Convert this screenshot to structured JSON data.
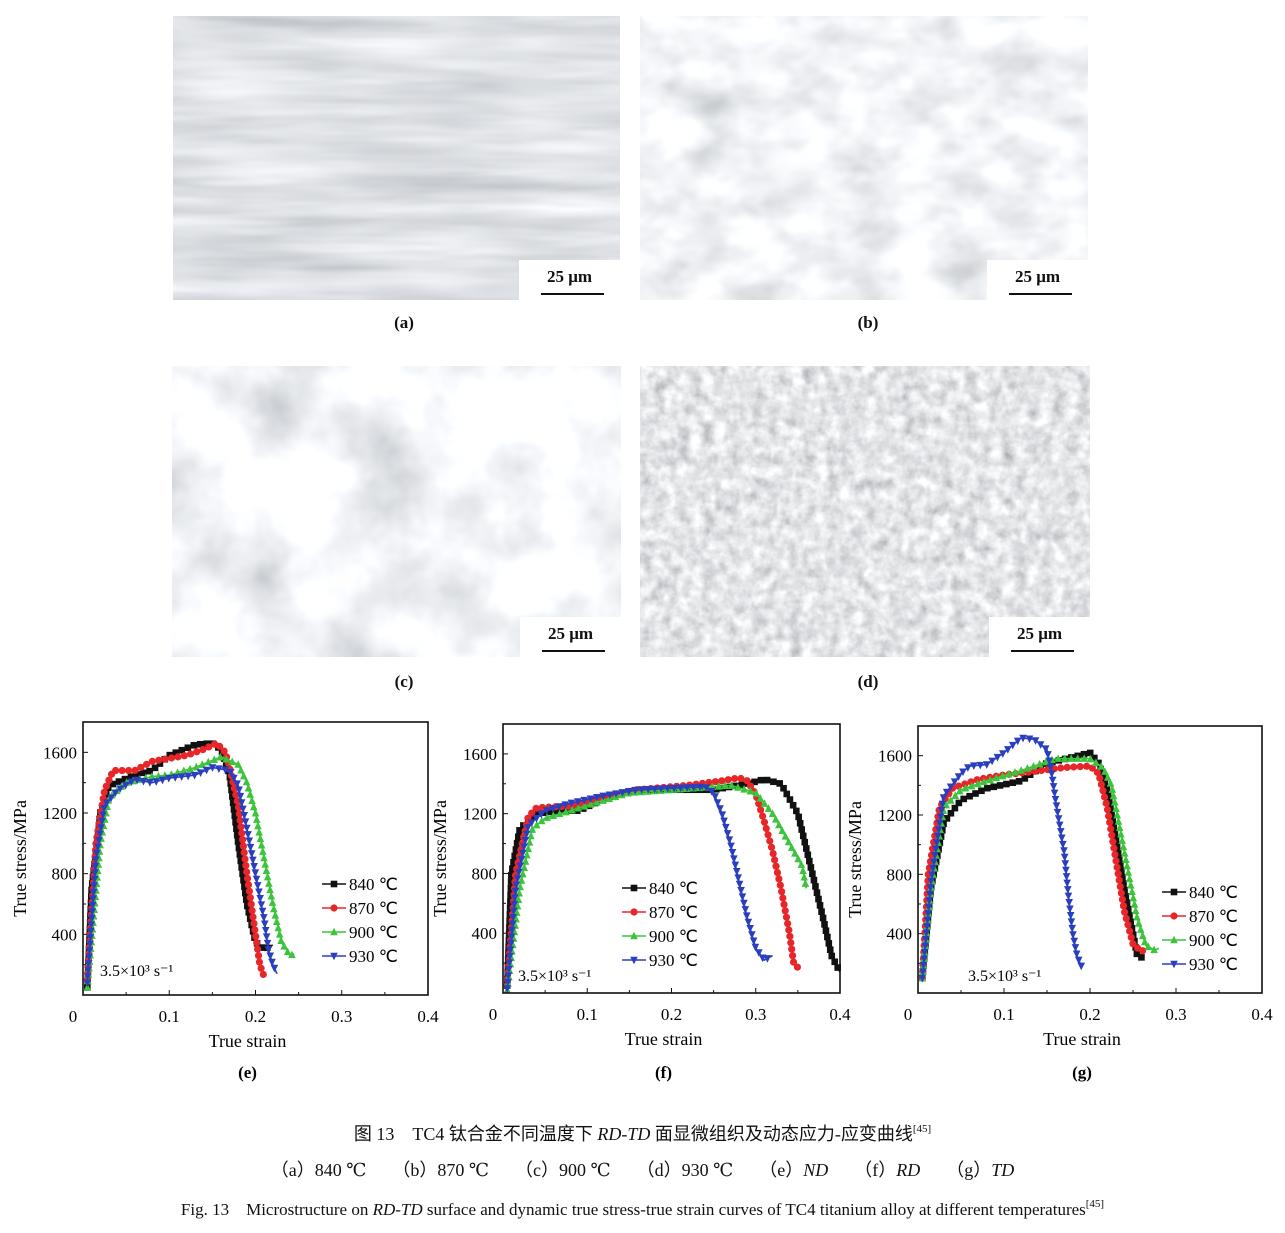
{
  "micrographs": [
    {
      "label": "(a)",
      "scale_bar": "25 μm"
    },
    {
      "label": "(b)",
      "scale_bar": "25 μm"
    },
    {
      "label": "(c)",
      "scale_bar": "25 μm"
    },
    {
      "label": "(d)",
      "scale_bar": "25 μm"
    }
  ],
  "colors": {
    "840": "#111111",
    "870": "#e8262a",
    "900": "#3cc43c",
    "930": "#2a3fc0"
  },
  "chart_data": [
    {
      "panel": "(e)",
      "type": "line",
      "xlabel": "True strain",
      "ylabel": "True stress/MPa",
      "xlim": [
        0,
        0.4
      ],
      "ylim": [
        0,
        1800
      ],
      "xticks": [
        "0",
        "0.1",
        "0.2",
        "0.3",
        "0.4"
      ],
      "yticks": [
        "400",
        "800",
        "1200",
        "1600"
      ],
      "annotation": "3.5×10³ s⁻¹",
      "legend": "right",
      "series": [
        {
          "name": "840 ℃",
          "marker": "square",
          "points": [
            [
              0.005,
              50
            ],
            [
              0.01,
              700
            ],
            [
              0.02,
              1200
            ],
            [
              0.03,
              1380
            ],
            [
              0.06,
              1450
            ],
            [
              0.08,
              1480
            ],
            [
              0.1,
              1580
            ],
            [
              0.13,
              1650
            ],
            [
              0.15,
              1660
            ],
            [
              0.16,
              1620
            ],
            [
              0.17,
              1450
            ],
            [
              0.18,
              1000
            ],
            [
              0.19,
              600
            ],
            [
              0.2,
              350
            ],
            [
              0.21,
              300
            ],
            [
              0.22,
              330
            ]
          ]
        },
        {
          "name": "870 ℃",
          "marker": "circle",
          "points": [
            [
              0.005,
              100
            ],
            [
              0.015,
              1000
            ],
            [
              0.025,
              1350
            ],
            [
              0.035,
              1480
            ],
            [
              0.06,
              1480
            ],
            [
              0.08,
              1540
            ],
            [
              0.1,
              1560
            ],
            [
              0.12,
              1580
            ],
            [
              0.14,
              1620
            ],
            [
              0.155,
              1660
            ],
            [
              0.165,
              1600
            ],
            [
              0.17,
              1500
            ],
            [
              0.18,
              1250
            ],
            [
              0.19,
              800
            ],
            [
              0.2,
              400
            ],
            [
              0.205,
              200
            ],
            [
              0.21,
              120
            ]
          ]
        },
        {
          "name": "900 ℃",
          "marker": "triangle-up",
          "points": [
            [
              0.005,
              50
            ],
            [
              0.02,
              1000
            ],
            [
              0.03,
              1300
            ],
            [
              0.05,
              1400
            ],
            [
              0.08,
              1440
            ],
            [
              0.1,
              1450
            ],
            [
              0.13,
              1500
            ],
            [
              0.16,
              1570
            ],
            [
              0.18,
              1520
            ],
            [
              0.19,
              1400
            ],
            [
              0.2,
              1200
            ],
            [
              0.21,
              900
            ],
            [
              0.22,
              600
            ],
            [
              0.23,
              350
            ],
            [
              0.24,
              260
            ],
            [
              0.245,
              270
            ]
          ]
        },
        {
          "name": "930 ℃",
          "marker": "triangle-down",
          "points": [
            [
              0.005,
              80
            ],
            [
              0.015,
              900
            ],
            [
              0.025,
              1250
            ],
            [
              0.04,
              1350
            ],
            [
              0.06,
              1420
            ],
            [
              0.08,
              1400
            ],
            [
              0.1,
              1430
            ],
            [
              0.13,
              1450
            ],
            [
              0.15,
              1500
            ],
            [
              0.17,
              1480
            ],
            [
              0.18,
              1380
            ],
            [
              0.19,
              1100
            ],
            [
              0.2,
              800
            ],
            [
              0.21,
              500
            ],
            [
              0.215,
              300
            ],
            [
              0.22,
              200
            ],
            [
              0.225,
              140
            ]
          ]
        }
      ]
    },
    {
      "panel": "(f)",
      "type": "line",
      "xlabel": "True strain",
      "ylabel": "True stress/MPa",
      "xlim": [
        0,
        0.4
      ],
      "ylim": [
        0,
        1800
      ],
      "xticks": [
        "0",
        "0.1",
        "0.2",
        "0.3",
        "0.4"
      ],
      "yticks": [
        "400",
        "800",
        "1200",
        "1600"
      ],
      "annotation": "3.5×10³ s⁻¹",
      "legend": "center",
      "series": [
        {
          "name": "840 ℃",
          "marker": "square",
          "points": [
            [
              0.005,
              50
            ],
            [
              0.01,
              800
            ],
            [
              0.02,
              1100
            ],
            [
              0.04,
              1200
            ],
            [
              0.07,
              1220
            ],
            [
              0.09,
              1220
            ],
            [
              0.12,
              1300
            ],
            [
              0.16,
              1360
            ],
            [
              0.2,
              1360
            ],
            [
              0.25,
              1360
            ],
            [
              0.29,
              1400
            ],
            [
              0.31,
              1430
            ],
            [
              0.33,
              1400
            ],
            [
              0.35,
              1200
            ],
            [
              0.365,
              850
            ],
            [
              0.38,
              500
            ],
            [
              0.39,
              250
            ],
            [
              0.4,
              140
            ]
          ]
        },
        {
          "name": "870 ℃",
          "marker": "circle",
          "points": [
            [
              0.005,
              50
            ],
            [
              0.015,
              800
            ],
            [
              0.03,
              1180
            ],
            [
              0.04,
              1240
            ],
            [
              0.08,
              1250
            ],
            [
              0.12,
              1310
            ],
            [
              0.16,
              1360
            ],
            [
              0.22,
              1390
            ],
            [
              0.26,
              1420
            ],
            [
              0.28,
              1440
            ],
            [
              0.29,
              1420
            ],
            [
              0.3,
              1330
            ],
            [
              0.31,
              1150
            ],
            [
              0.32,
              950
            ],
            [
              0.33,
              700
            ],
            [
              0.34,
              400
            ],
            [
              0.345,
              200
            ],
            [
              0.35,
              170
            ]
          ]
        },
        {
          "name": "900 ℃",
          "marker": "triangle-up",
          "points": [
            [
              0.005,
              20
            ],
            [
              0.02,
              700
            ],
            [
              0.035,
              1100
            ],
            [
              0.05,
              1170
            ],
            [
              0.08,
              1220
            ],
            [
              0.12,
              1290
            ],
            [
              0.15,
              1340
            ],
            [
              0.2,
              1360
            ],
            [
              0.25,
              1380
            ],
            [
              0.27,
              1390
            ],
            [
              0.3,
              1340
            ],
            [
              0.32,
              1200
            ],
            [
              0.34,
              1000
            ],
            [
              0.355,
              850
            ],
            [
              0.36,
              700
            ]
          ]
        },
        {
          "name": "930 ℃",
          "marker": "triangle-down",
          "points": [
            [
              0.005,
              30
            ],
            [
              0.015,
              700
            ],
            [
              0.03,
              1120
            ],
            [
              0.05,
              1220
            ],
            [
              0.08,
              1270
            ],
            [
              0.12,
              1320
            ],
            [
              0.16,
              1360
            ],
            [
              0.2,
              1370
            ],
            [
              0.24,
              1380
            ],
            [
              0.25,
              1340
            ],
            [
              0.26,
              1200
            ],
            [
              0.27,
              1000
            ],
            [
              0.28,
              750
            ],
            [
              0.29,
              500
            ],
            [
              0.3,
              300
            ],
            [
              0.31,
              220
            ],
            [
              0.32,
              250
            ]
          ]
        }
      ]
    },
    {
      "panel": "(g)",
      "type": "line",
      "xlabel": "True strain",
      "ylabel": "True stress/MPa",
      "xlim": [
        0,
        0.4
      ],
      "ylim": [
        0,
        1800
      ],
      "xticks": [
        "0",
        "0.1",
        "0.2",
        "0.3",
        "0.4"
      ],
      "yticks": [
        "400",
        "800",
        "1200",
        "1600"
      ],
      "annotation": "3.5×10³ s⁻¹",
      "legend": "right",
      "series": [
        {
          "name": "840 ℃",
          "marker": "square",
          "points": [
            [
              0.005,
              100
            ],
            [
              0.015,
              700
            ],
            [
              0.03,
              1150
            ],
            [
              0.05,
              1300
            ],
            [
              0.08,
              1380
            ],
            [
              0.12,
              1430
            ],
            [
              0.15,
              1550
            ],
            [
              0.18,
              1590
            ],
            [
              0.2,
              1620
            ],
            [
              0.21,
              1550
            ],
            [
              0.22,
              1380
            ],
            [
              0.23,
              1050
            ],
            [
              0.24,
              700
            ],
            [
              0.25,
              400
            ],
            [
              0.255,
              250
            ],
            [
              0.26,
              240
            ]
          ]
        },
        {
          "name": "870 ℃",
          "marker": "circle",
          "points": [
            [
              0.005,
              100
            ],
            [
              0.012,
              800
            ],
            [
              0.025,
              1250
            ],
            [
              0.04,
              1380
            ],
            [
              0.07,
              1440
            ],
            [
              0.1,
              1470
            ],
            [
              0.13,
              1490
            ],
            [
              0.17,
              1520
            ],
            [
              0.2,
              1530
            ],
            [
              0.21,
              1480
            ],
            [
              0.22,
              1250
            ],
            [
              0.23,
              900
            ],
            [
              0.24,
              550
            ],
            [
              0.25,
              330
            ],
            [
              0.26,
              280
            ],
            [
              0.265,
              300
            ]
          ]
        },
        {
          "name": "900 ℃",
          "marker": "triangle-up",
          "points": [
            [
              0.005,
              100
            ],
            [
              0.015,
              700
            ],
            [
              0.03,
              1250
            ],
            [
              0.05,
              1370
            ],
            [
              0.08,
              1430
            ],
            [
              0.12,
              1500
            ],
            [
              0.16,
              1580
            ],
            [
              0.2,
              1580
            ],
            [
              0.215,
              1520
            ],
            [
              0.225,
              1400
            ],
            [
              0.235,
              1100
            ],
            [
              0.245,
              800
            ],
            [
              0.255,
              500
            ],
            [
              0.265,
              320
            ],
            [
              0.275,
              290
            ],
            [
              0.28,
              300
            ]
          ]
        },
        {
          "name": "930 ℃",
          "marker": "triangle-down",
          "points": [
            [
              0.005,
              100
            ],
            [
              0.015,
              750
            ],
            [
              0.03,
              1330
            ],
            [
              0.05,
              1480
            ],
            [
              0.06,
              1530
            ],
            [
              0.08,
              1540
            ],
            [
              0.1,
              1620
            ],
            [
              0.12,
              1720
            ],
            [
              0.135,
              1710
            ],
            [
              0.15,
              1640
            ],
            [
              0.155,
              1500
            ],
            [
              0.16,
              1300
            ],
            [
              0.17,
              950
            ],
            [
              0.175,
              650
            ],
            [
              0.18,
              400
            ],
            [
              0.185,
              250
            ],
            [
              0.19,
              180
            ]
          ]
        }
      ]
    }
  ],
  "caption": {
    "cn_prefix": "图 13　TC4 钛合金不同温度下 ",
    "cn_italic": "RD-TD",
    "cn_suffix": " 面显微组织及动态应力-应变曲线",
    "ref": "[45]",
    "sub_items": [
      {
        "tag": "（a）",
        "text": "840 ℃",
        "italic": false
      },
      {
        "tag": "（b）",
        "text": "870 ℃",
        "italic": false
      },
      {
        "tag": "（c）",
        "text": "900 ℃",
        "italic": false
      },
      {
        "tag": "（d）",
        "text": "930 ℃",
        "italic": false
      },
      {
        "tag": "（e）",
        "text": "ND",
        "italic": true
      },
      {
        "tag": "（f）",
        "text": "RD",
        "italic": true
      },
      {
        "tag": "（g）",
        "text": "TD",
        "italic": true
      }
    ],
    "en_prefix": "Fig. 13　Microstructure on ",
    "en_italic": "RD-TD",
    "en_suffix": " surface and dynamic true stress-true strain curves of TC4 titanium alloy at different temperatures"
  }
}
